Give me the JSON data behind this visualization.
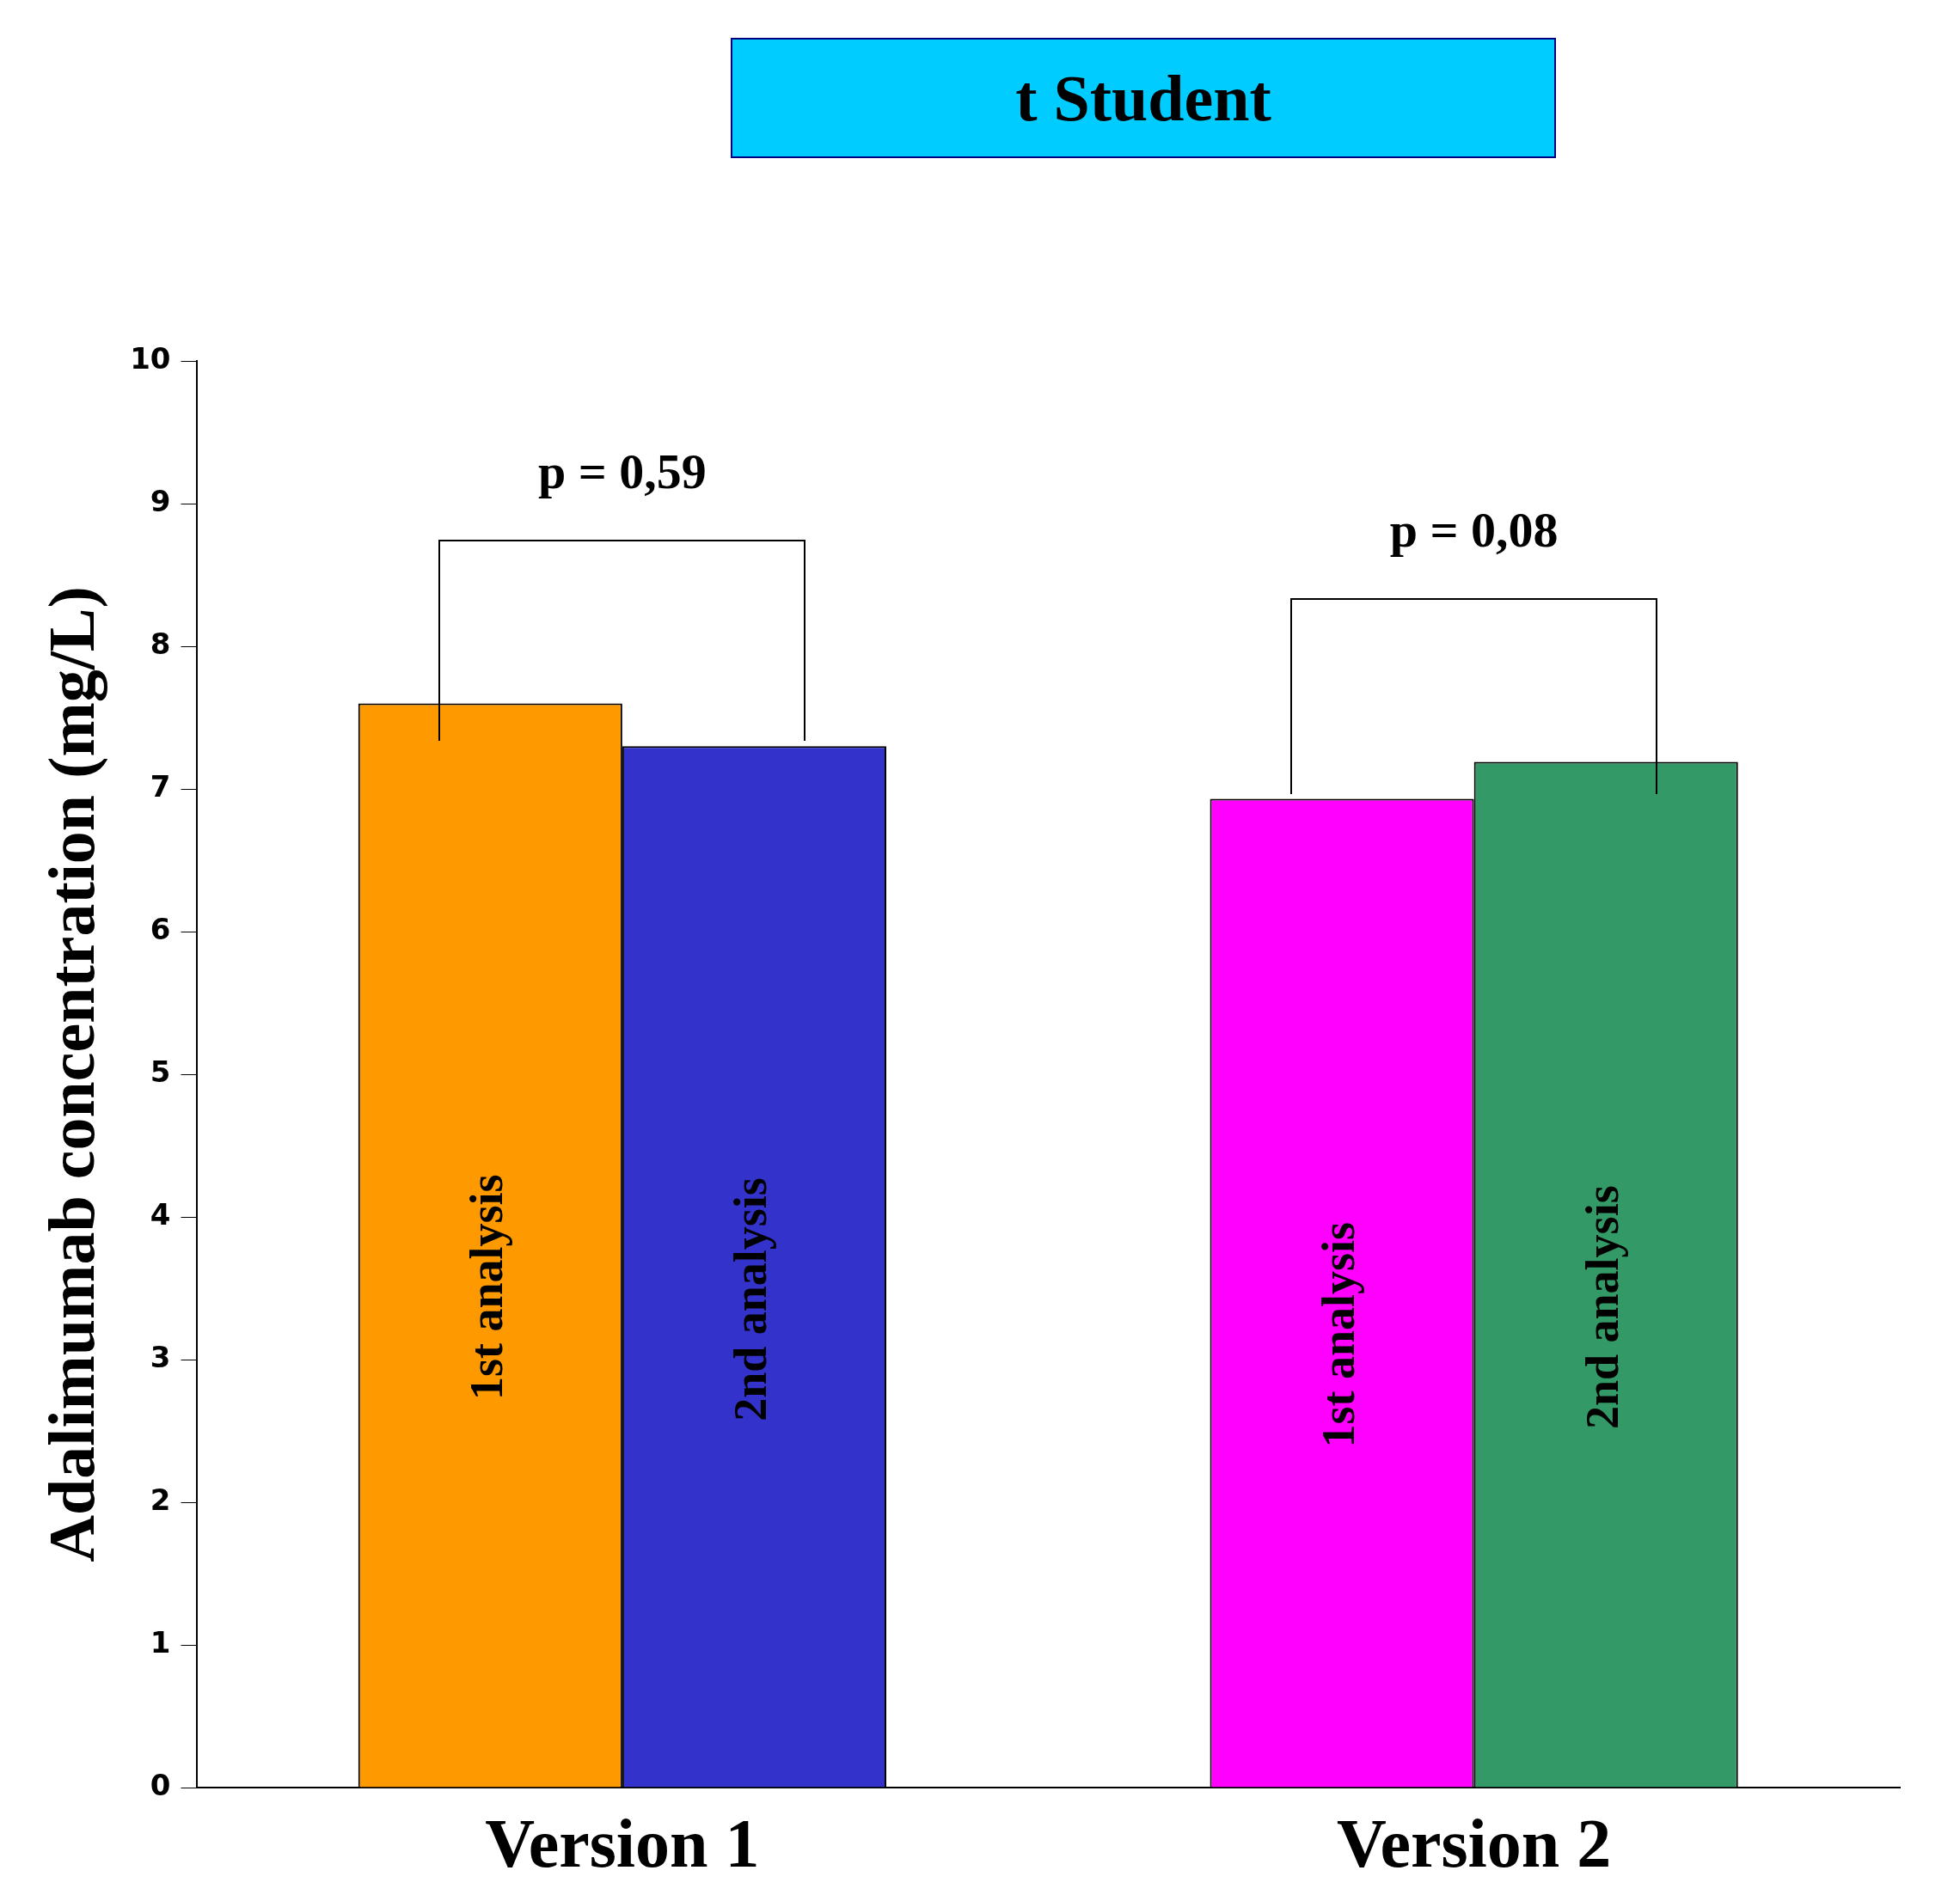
{
  "chart_data": {
    "type": "bar",
    "title": "t Student",
    "ylabel": "Adalimumab concentration (mg/L)",
    "categories": [
      "Version 1",
      "Version 2"
    ],
    "series": [
      {
        "name": "1st analysis",
        "colors": [
          "#ff9900",
          "#ff00ff"
        ],
        "values": [
          7.6,
          6.93
        ]
      },
      {
        "name": "2nd analysis",
        "colors": [
          "#3333cc",
          "#339966"
        ],
        "values": [
          7.3,
          7.19
        ]
      }
    ],
    "ylim": [
      0,
      10
    ],
    "yticks": [
      0,
      1,
      2,
      3,
      4,
      5,
      6,
      7,
      8,
      9,
      10
    ],
    "grid": false,
    "legend": false,
    "annotations": [
      "p = 0,59",
      "p = 0,08"
    ]
  }
}
